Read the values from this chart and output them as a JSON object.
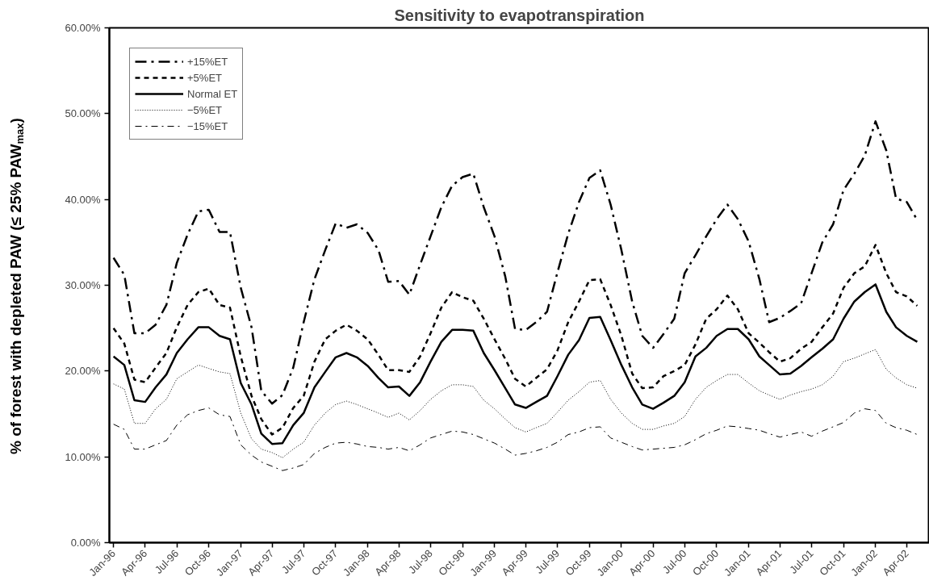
{
  "chart_data": {
    "type": "line",
    "title": "Sensitivity to evapotranspiration",
    "ylabel": "% of forest with depleted PAW (≤ 25% PAW$_{max}$)",
    "x": [
      "1996-01",
      "1996-02",
      "1996-03",
      "1996-04",
      "1996-05",
      "1996-06",
      "1996-07",
      "1996-08",
      "1996-09",
      "1996-10",
      "1996-11",
      "1996-12",
      "1997-01",
      "1997-02",
      "1997-03",
      "1997-04",
      "1997-05",
      "1997-06",
      "1997-07",
      "1997-08",
      "1997-09",
      "1997-10",
      "1997-11",
      "1997-12",
      "1998-01",
      "1998-02",
      "1998-03",
      "1998-04",
      "1998-05",
      "1998-06",
      "1998-07",
      "1998-08",
      "1998-09",
      "1998-10",
      "1998-11",
      "1998-12",
      "1999-01",
      "1999-02",
      "1999-03",
      "1999-04",
      "1999-05",
      "1999-06",
      "1999-07",
      "1999-08",
      "1999-09",
      "1999-10",
      "1999-11",
      "1999-12",
      "2000-01",
      "2000-02",
      "2000-03",
      "2000-04",
      "2000-05",
      "2000-06",
      "2000-07",
      "2000-08",
      "2000-09",
      "2000-10",
      "2000-11",
      "2000-12",
      "2001-01",
      "2001-02",
      "2001-03",
      "2001-04",
      "2001-05",
      "2001-06",
      "2001-07",
      "2001-08",
      "2001-09",
      "2001-10",
      "2001-11",
      "2001-12",
      "2002-01",
      "2002-02",
      "2002-03",
      "2002-04",
      "2002-05"
    ],
    "series": [
      {
        "name": "+15%ET",
        "color": "#000000",
        "line_style": "dashdot",
        "values": [
          33.2,
          31.2,
          24.4,
          24.4,
          25.4,
          27.7,
          32.6,
          35.9,
          38.6,
          38.8,
          36.2,
          36.2,
          29.7,
          25.1,
          17.7,
          16.2,
          17.2,
          20.4,
          25.7,
          30.7,
          34.1,
          37.2,
          36.7,
          37.1,
          36.1,
          34.1,
          30.4,
          30.5,
          28.9,
          32.4,
          35.7,
          39.1,
          41.6,
          42.6,
          43.0,
          39.1,
          35.7,
          31.0,
          24.9,
          24.8,
          25.7,
          26.9,
          31.5,
          36.0,
          39.7,
          42.5,
          43.4,
          39.4,
          34.1,
          28.1,
          24.1,
          22.7,
          24.3,
          26.1,
          31.4,
          33.5,
          35.7,
          37.7,
          39.4,
          37.7,
          35.1,
          30.7,
          25.7,
          26.2,
          27.0,
          27.9,
          31.4,
          35.0,
          37.1,
          41.1,
          43.0,
          45.1,
          49.1,
          45.7,
          40.1,
          39.7,
          37.6
        ]
      },
      {
        "name": "+5%ET",
        "color": "#000000",
        "line_style": "dashed",
        "values": [
          25.0,
          23.2,
          19.0,
          18.7,
          20.4,
          22.1,
          25.1,
          27.7,
          29.2,
          29.6,
          27.7,
          27.4,
          21.7,
          17.1,
          14.4,
          12.6,
          13.4,
          15.7,
          17.1,
          21.1,
          23.7,
          24.7,
          25.4,
          24.7,
          23.7,
          21.9,
          20.1,
          20.1,
          19.9,
          21.7,
          24.4,
          27.4,
          29.2,
          28.6,
          28.2,
          26.1,
          23.7,
          21.4,
          19.1,
          18.2,
          19.2,
          20.2,
          22.4,
          25.7,
          28.1,
          30.6,
          30.7,
          27.7,
          24.1,
          19.7,
          18.0,
          18.1,
          19.4,
          20.0,
          20.7,
          23.1,
          26.1,
          27.2,
          28.8,
          27.2,
          24.4,
          23.3,
          22.2,
          21.1,
          21.5,
          22.6,
          23.4,
          25.1,
          26.7,
          29.7,
          31.4,
          32.2,
          34.7,
          31.4,
          29.2,
          28.7,
          27.6
        ]
      },
      {
        "name": "Normal ET",
        "color": "#000000",
        "line_style": "solid",
        "values": [
          21.7,
          20.7,
          16.6,
          16.4,
          18.1,
          19.6,
          22.1,
          23.7,
          25.1,
          25.1,
          24.1,
          23.7,
          18.6,
          16.1,
          12.7,
          11.5,
          11.6,
          13.7,
          15.1,
          18.1,
          19.9,
          21.6,
          22.1,
          21.6,
          20.6,
          19.2,
          18.1,
          18.2,
          17.1,
          18.7,
          21.1,
          23.4,
          24.8,
          24.8,
          24.7,
          22.1,
          20.1,
          18.0,
          16.1,
          15.7,
          16.4,
          17.1,
          19.4,
          21.9,
          23.6,
          26.2,
          26.3,
          23.6,
          20.7,
          18.1,
          16.1,
          15.6,
          16.3,
          17.1,
          18.7,
          21.7,
          22.7,
          24.1,
          24.9,
          24.9,
          23.7,
          21.7,
          20.7,
          19.6,
          19.7,
          20.6,
          21.6,
          22.6,
          23.7,
          26.1,
          28.1,
          29.2,
          30.1,
          26.9,
          25.1,
          24.1,
          23.4
        ]
      },
      {
        "name": "−5%ET",
        "color": "#000000",
        "line_style": "dotted",
        "values": [
          18.5,
          17.9,
          13.9,
          13.9,
          15.6,
          16.7,
          19.1,
          19.9,
          20.7,
          20.3,
          19.9,
          19.7,
          15.1,
          12.1,
          10.9,
          10.5,
          9.9,
          10.9,
          11.7,
          13.7,
          15.1,
          16.1,
          16.5,
          16.1,
          15.6,
          15.1,
          14.6,
          15.1,
          14.3,
          15.4,
          16.7,
          17.7,
          18.4,
          18.4,
          18.2,
          16.6,
          15.6,
          14.4,
          13.4,
          12.9,
          13.4,
          13.9,
          15.2,
          16.6,
          17.6,
          18.7,
          18.9,
          16.7,
          15.1,
          13.9,
          13.2,
          13.2,
          13.6,
          13.9,
          14.7,
          16.7,
          18.1,
          18.9,
          19.6,
          19.6,
          18.6,
          17.7,
          17.2,
          16.7,
          17.2,
          17.6,
          17.9,
          18.4,
          19.4,
          21.1,
          21.5,
          22.0,
          22.5,
          20.2,
          19.2,
          18.4,
          18.0
        ]
      },
      {
        "name": "−15%ET",
        "color": "#000000",
        "line_style": "dashdot",
        "values": [
          13.8,
          13.2,
          10.9,
          10.9,
          11.4,
          11.9,
          13.7,
          14.9,
          15.4,
          15.7,
          14.9,
          14.7,
          11.4,
          10.2,
          9.4,
          8.9,
          8.4,
          8.7,
          9.1,
          10.4,
          11.1,
          11.6,
          11.7,
          11.5,
          11.2,
          11.1,
          10.9,
          11.1,
          10.7,
          11.4,
          12.2,
          12.6,
          13.0,
          12.9,
          12.6,
          12.1,
          11.6,
          10.9,
          10.2,
          10.4,
          10.7,
          11.1,
          11.7,
          12.6,
          12.9,
          13.4,
          13.5,
          12.2,
          11.7,
          11.2,
          10.8,
          10.9,
          11.0,
          11.1,
          11.4,
          12.0,
          12.7,
          13.1,
          13.6,
          13.5,
          13.3,
          13.1,
          12.7,
          12.3,
          12.6,
          12.9,
          12.4,
          13.0,
          13.5,
          14.0,
          15.1,
          15.6,
          15.4,
          13.9,
          13.4,
          13.1,
          12.6
        ]
      }
    ],
    "xlim": [
      "1995-12-20",
      "2002-06-05"
    ],
    "xticks": [
      {
        "value": "1996-01",
        "label": "Jan-96"
      },
      {
        "value": "1996-04",
        "label": "Apr-96"
      },
      {
        "value": "1996-07",
        "label": "Jul-96"
      },
      {
        "value": "1996-10",
        "label": "Oct-96"
      },
      {
        "value": "1997-01",
        "label": "Jan-97"
      },
      {
        "value": "1997-04",
        "label": "Apr-97"
      },
      {
        "value": "1997-07",
        "label": "Jul-97"
      },
      {
        "value": "1997-10",
        "label": "Oct-97"
      },
      {
        "value": "1998-01",
        "label": "Jan-98"
      },
      {
        "value": "1998-04",
        "label": "Apr-98"
      },
      {
        "value": "1998-07",
        "label": "Jul-98"
      },
      {
        "value": "1998-10",
        "label": "Oct-98"
      },
      {
        "value": "1999-01",
        "label": "Jan-99"
      },
      {
        "value": "1999-04",
        "label": "Apr-99"
      },
      {
        "value": "1999-07",
        "label": "Jul-99"
      },
      {
        "value": "1999-10",
        "label": "Oct-99"
      },
      {
        "value": "2000-01",
        "label": "Jan-00"
      },
      {
        "value": "2000-04",
        "label": "Apr-00"
      },
      {
        "value": "2000-07",
        "label": "Jul-00"
      },
      {
        "value": "2000-10",
        "label": "Oct-00"
      },
      {
        "value": "2001-01",
        "label": "Jan-01"
      },
      {
        "value": "2001-04",
        "label": "Apr-01"
      },
      {
        "value": "2001-07",
        "label": "Jul-01"
      },
      {
        "value": "2001-10",
        "label": "Oct-01"
      },
      {
        "value": "2002-01",
        "label": "Jan-02"
      },
      {
        "value": "2002-04",
        "label": "Apr-02"
      }
    ],
    "ylim": [
      0,
      60
    ],
    "yticks": [
      {
        "value": 0,
        "label": "0.00%"
      },
      {
        "value": 10,
        "label": "10.00%"
      },
      {
        "value": 20,
        "label": "20.00%"
      },
      {
        "value": 30,
        "label": "30.00%"
      },
      {
        "value": 40,
        "label": "40.00%"
      },
      {
        "value": 50,
        "label": "50.00%"
      },
      {
        "value": 60,
        "label": "60.00%"
      }
    ],
    "grid": false,
    "legend": "top left",
    "marker": "none"
  }
}
